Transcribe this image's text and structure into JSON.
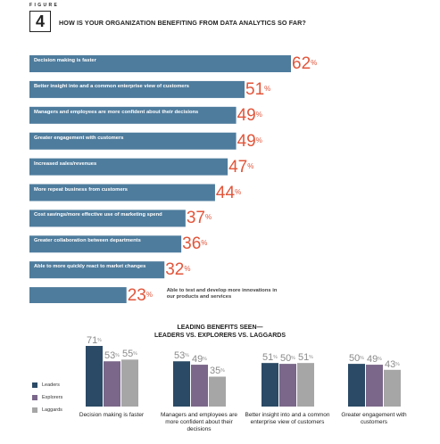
{
  "figure": {
    "label": "FIGURE",
    "number": "4",
    "title": "HOW IS YOUR ORGANIZATION BENEFITING FROM DATA ANALYTICS SO FAR?"
  },
  "colors": {
    "bar": "#4e7c9d",
    "value": "#e2553a",
    "leaders": "#2b4a66",
    "explorers": "#7a6789",
    "laggards": "#a6a6a6"
  },
  "chart_data": [
    {
      "type": "bar",
      "orientation": "horizontal",
      "title": "HOW IS YOUR ORGANIZATION BENEFITING FROM DATA ANALYTICS SO FAR?",
      "unit": "%",
      "categories": [
        "Decision making is faster",
        "Better insight into and a common enterprise view of customers",
        "Managers and employees are more confident about their decisions",
        "Greater engagement with customers",
        "Increased sales/revenues",
        "More repeat business from customers",
        "Cost savings/more effective use of marketing spend",
        "Greater collaboration between departments",
        "Able to more quickly react to market changes",
        "Able to test and develop more innovations in our products and services"
      ],
      "values": [
        62,
        51,
        49,
        49,
        47,
        44,
        37,
        36,
        32,
        23
      ]
    },
    {
      "type": "bar",
      "title": "LEADING BENEFITS SEEN— LEADERS VS. EXPLORERS VS. LAGGARDS",
      "unit": "%",
      "categories": [
        "Decision making is faster",
        "Managers and employees are more confident about their decisions",
        "Better insight into and a common enterprise view of customers",
        "Greater engagement with customers"
      ],
      "series": [
        {
          "name": "Leaders",
          "values": [
            71,
            53,
            51,
            50
          ]
        },
        {
          "name": "Explorers",
          "values": [
            53,
            49,
            50,
            49
          ]
        },
        {
          "name": "Laggards",
          "values": [
            55,
            35,
            51,
            43
          ]
        }
      ],
      "legend": "left"
    }
  ]
}
